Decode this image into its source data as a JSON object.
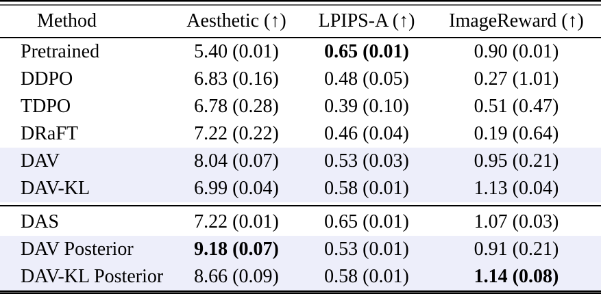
{
  "colors": {
    "highlight_bg": "#EDEEFA",
    "rule": "#000000",
    "text": "#000000"
  },
  "table": {
    "columns": {
      "method": "Method",
      "aesthetic": "Aesthetic (↑)",
      "lpips": "LPIPS-A (↑)",
      "imagereward": "ImageReward (↑)"
    },
    "rows": [
      {
        "method": "Pretrained",
        "aesthetic": "5.40 (0.01)",
        "lpips": "0.65 (0.01)",
        "imagereward": "0.90 (0.01)",
        "bold_aesthetic": false,
        "bold_lpips": true,
        "bold_imagereward": false,
        "highlight": false
      },
      {
        "method": "DDPO",
        "aesthetic": "6.83 (0.16)",
        "lpips": "0.48 (0.05)",
        "imagereward": "0.27 (1.01)",
        "bold_aesthetic": false,
        "bold_lpips": false,
        "bold_imagereward": false,
        "highlight": false
      },
      {
        "method": "TDPO",
        "aesthetic": "6.78 (0.28)",
        "lpips": "0.39 (0.10)",
        "imagereward": "0.51 (0.47)",
        "bold_aesthetic": false,
        "bold_lpips": false,
        "bold_imagereward": false,
        "highlight": false
      },
      {
        "method": "DRaFT",
        "aesthetic": "7.22 (0.22)",
        "lpips": "0.46 (0.04)",
        "imagereward": "0.19 (0.64)",
        "bold_aesthetic": false,
        "bold_lpips": false,
        "bold_imagereward": false,
        "highlight": false
      },
      {
        "method": "DAV",
        "aesthetic": "8.04 (0.07)",
        "lpips": "0.53 (0.03)",
        "imagereward": "0.95 (0.21)",
        "bold_aesthetic": false,
        "bold_lpips": false,
        "bold_imagereward": false,
        "highlight": true
      },
      {
        "method": "DAV-KL",
        "aesthetic": "6.99 (0.04)",
        "lpips": "0.58 (0.01)",
        "imagereward": "1.13 (0.04)",
        "bold_aesthetic": false,
        "bold_lpips": false,
        "bold_imagereward": false,
        "highlight": true
      },
      {
        "method": "DAS",
        "aesthetic": "7.22 (0.01)",
        "lpips": "0.65 (0.01)",
        "imagereward": "1.07 (0.03)",
        "bold_aesthetic": false,
        "bold_lpips": false,
        "bold_imagereward": false,
        "highlight": false
      },
      {
        "method": "DAV Posterior",
        "aesthetic": "9.18 (0.07)",
        "lpips": "0.53 (0.01)",
        "imagereward": "0.91 (0.21)",
        "bold_aesthetic": true,
        "bold_lpips": false,
        "bold_imagereward": false,
        "highlight": true
      },
      {
        "method": "DAV-KL Posterior",
        "aesthetic": "8.66 (0.09)",
        "lpips": "0.58 (0.01)",
        "imagereward": "1.14 (0.08)",
        "bold_aesthetic": false,
        "bold_lpips": false,
        "bold_imagereward": true,
        "highlight": true
      }
    ]
  }
}
